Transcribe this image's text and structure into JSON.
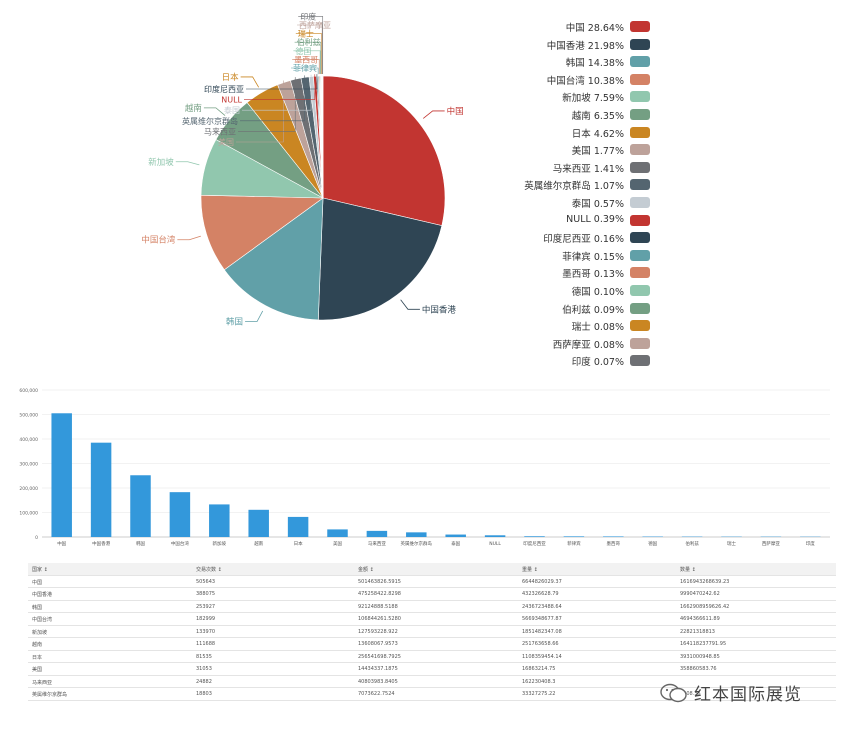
{
  "chart_data": [
    {
      "type": "pie",
      "slices": [
        {
          "label": "中国",
          "value": 28.64,
          "color": "#c23531"
        },
        {
          "label": "中国香港",
          "value": 21.98,
          "color": "#2f4554"
        },
        {
          "label": "韩国",
          "value": 14.38,
          "color": "#61a0a8"
        },
        {
          "label": "中国台湾",
          "value": 10.38,
          "color": "#d48265"
        },
        {
          "label": "新加坡",
          "value": 7.59,
          "color": "#91c7ae"
        },
        {
          "label": "越南",
          "value": 6.35,
          "color": "#749f83"
        },
        {
          "label": "日本",
          "value": 4.62,
          "color": "#ca8622"
        },
        {
          "label": "美国",
          "value": 1.77,
          "color": "#bda29a"
        },
        {
          "label": "马来西亚",
          "value": 1.41,
          "color": "#6e7074"
        },
        {
          "label": "英属维尔京群岛",
          "value": 1.07,
          "color": "#546570"
        },
        {
          "label": "泰国",
          "value": 0.57,
          "color": "#c4ccd3"
        },
        {
          "label": "NULL",
          "value": 0.39,
          "color": "#c23531"
        },
        {
          "label": "印度尼西亚",
          "value": 0.16,
          "color": "#2f4554"
        },
        {
          "label": "菲律宾",
          "value": 0.15,
          "color": "#61a0a8"
        },
        {
          "label": "墨西哥",
          "value": 0.13,
          "color": "#d48265"
        },
        {
          "label": "德国",
          "value": 0.1,
          "color": "#91c7ae"
        },
        {
          "label": "伯利兹",
          "value": 0.09,
          "color": "#749f83"
        },
        {
          "label": "瑞士",
          "value": 0.08,
          "color": "#ca8622"
        },
        {
          "label": "西萨摩亚",
          "value": 0.08,
          "color": "#bda29a"
        },
        {
          "label": "印度",
          "value": 0.07,
          "color": "#6e7074"
        }
      ],
      "legend_position": "right"
    },
    {
      "type": "bar",
      "categories": [
        "中国",
        "中国香港",
        "韩国",
        "中国台湾",
        "新加坡",
        "越南",
        "日本",
        "美国",
        "马来西亚",
        "英属维尔京群岛",
        "泰国",
        "NULL",
        "印度尼西亚",
        "菲律宾",
        "墨西哥",
        "德国",
        "伯利兹",
        "瑞士",
        "西萨摩亚",
        "印度"
      ],
      "values": [
        505000,
        385000,
        252000,
        183000,
        133000,
        111000,
        82000,
        31000,
        25000,
        19000,
        10000,
        7000,
        3000,
        2600,
        2300,
        1800,
        1600,
        1400,
        1400,
        1200
      ],
      "ylim": [
        0,
        600000
      ],
      "yticks": [
        "0",
        "100,000",
        "200,000",
        "300,000",
        "400,000",
        "500,000",
        "600,000"
      ],
      "color": "#3398db",
      "grid": true
    }
  ],
  "table": {
    "headers": [
      "国家 ↕",
      "交易次数 ↕",
      "金额 ↕",
      "重量 ↕",
      "数量 ↕"
    ],
    "rows": [
      [
        "中国",
        "505643",
        "501463826.5915",
        "6644826029.37",
        "1616943268639.23"
      ],
      [
        "中国香港",
        "388075",
        "475258422.8298",
        "432326628.79",
        "9990470242.62"
      ],
      [
        "韩国",
        "253927",
        "92124888.5188",
        "2436723488.64",
        "1662908959626.42"
      ],
      [
        "中国台湾",
        "182999",
        "106844261.5280",
        "5669348677.87",
        "4694366611.89"
      ],
      [
        "新加坡",
        "133970",
        "127593228.922",
        "1851482347.08",
        "22821318813"
      ],
      [
        "越南",
        "111688",
        "13608067.9573",
        "251763658.66",
        "164118237791.95"
      ],
      [
        "日本",
        "81535",
        "256541698.7925",
        "1108359454.14",
        "3931000948.85"
      ],
      [
        "美国",
        "31053",
        "14434337.1875",
        "16863214.75",
        "358860583.76"
      ],
      [
        "马来西亚",
        "24882",
        "40803983.8405",
        "162230408.3",
        ""
      ],
      [
        "英属维尔京群岛",
        "18803",
        "7073622.7524",
        "33327275.22",
        "8008.35"
      ]
    ]
  },
  "watermark": {
    "text": "红本国际展览",
    "icon": "wechat-icon"
  }
}
